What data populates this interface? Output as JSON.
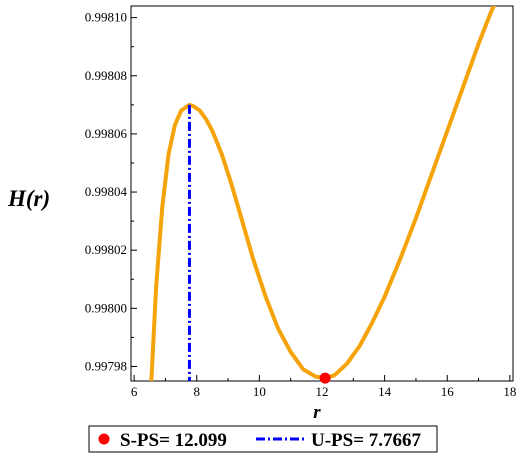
{
  "chart_data": {
    "type": "line",
    "xlabel": "r",
    "ylabel": "H(r)",
    "xlim": [
      5.9,
      18.1
    ],
    "ylim": [
      0.997975,
      0.998104
    ],
    "xticks": [
      6,
      8,
      10,
      12,
      14,
      16,
      18
    ],
    "xtick_labels": [
      "6",
      "8",
      "10",
      "12",
      "14",
      "16",
      "18"
    ],
    "yticks": [
      0.99798,
      0.998,
      0.99802,
      0.99804,
      0.99806,
      0.99808,
      0.9981
    ],
    "ytick_labels": [
      "0.99798",
      "0.99800",
      "0.99802",
      "0.99804",
      "0.99806",
      "0.99808",
      "0.99810"
    ],
    "grid": false,
    "legend_position": "bottom",
    "series": [
      {
        "label": "H(r)",
        "color": "#f5a30a",
        "x": [
          6.55,
          6.7,
          6.9,
          7.1,
          7.3,
          7.5,
          7.7,
          7.7667,
          7.9,
          8.1,
          8.3,
          8.5,
          8.8,
          9.1,
          9.4,
          9.8,
          10.2,
          10.6,
          11.0,
          11.4,
          11.8,
          12.099,
          12.4,
          12.8,
          13.2,
          13.6,
          14.0,
          14.5,
          15.0,
          15.5,
          16.0,
          16.5,
          17.0,
          17.4,
          17.75
        ],
        "y": [
          0.997975,
          0.998007,
          0.998035,
          0.998053,
          0.998063,
          0.998068,
          0.9980695,
          0.99807,
          0.9980695,
          0.998068,
          0.998065,
          0.998061,
          0.998053,
          0.998043,
          0.998032,
          0.998017,
          0.998004,
          0.997993,
          0.997985,
          0.997979,
          0.9979765,
          0.997976,
          0.997977,
          0.997981,
          0.997987,
          0.997995,
          0.998004,
          0.998017,
          0.998031,
          0.998046,
          0.998061,
          0.998076,
          0.998091,
          0.998102,
          0.99811
        ]
      }
    ],
    "markers": [
      {
        "name": "S-PS",
        "x": 12.099,
        "y": 0.997976,
        "color": "#ff0000",
        "legend": "S-PS= 12.099"
      }
    ],
    "vlines": [
      {
        "name": "U-PS",
        "x": 7.7667,
        "y_top": 0.99807,
        "color": "#0000ff",
        "style": "dashdot",
        "legend": "U-PS= 7.7667"
      }
    ]
  }
}
